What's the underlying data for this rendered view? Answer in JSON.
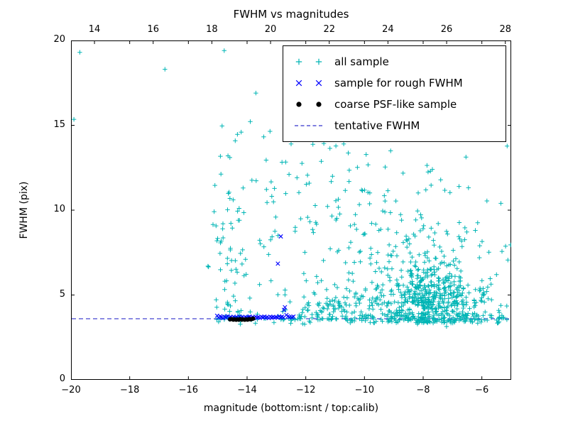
{
  "chart_data": {
    "type": "scatter",
    "title": "FWHM vs magnitudes",
    "xlabel": "magnitude (bottom:isnt / top:calib)",
    "ylabel": "FWHM (pix)",
    "xlim": [
      -20,
      -5
    ],
    "ylim": [
      0,
      20
    ],
    "grid": false,
    "legend_position": "upper right",
    "x_ticks": {
      "values": [
        -20,
        -18,
        -16,
        -14,
        -12,
        -10,
        -8,
        -6
      ],
      "labels": [
        "−20",
        "−18",
        "−16",
        "−14",
        "−12",
        "−10",
        "−8",
        "−6"
      ]
    },
    "top_ticks": {
      "values": [
        14,
        16,
        18,
        20,
        22,
        24,
        26,
        28
      ],
      "labels": [
        "14",
        "16",
        "18",
        "20",
        "22",
        "24",
        "26",
        "28"
      ],
      "offset": 33.2
    },
    "y_ticks": {
      "values": [
        0,
        5,
        10,
        15,
        20
      ],
      "labels": [
        "0",
        "5",
        "10",
        "15",
        "20"
      ]
    },
    "seed": 12345,
    "series": [
      {
        "name": "all sample",
        "marker": "plus",
        "color": "#00b5b5",
        "clusters": [
          {
            "kind": "gauss",
            "cx": -7.75,
            "cy": 4.6,
            "sx": 0.9,
            "sy": 1.0,
            "count": 500,
            "ymin": 3.35,
            "ymax": 8.5
          },
          {
            "kind": "gauss",
            "cx": -8.3,
            "cy": 7.3,
            "sx": 1.25,
            "sy": 2.3,
            "count": 150,
            "ymin": 3.4,
            "ymax": 15.3
          },
          {
            "kind": "band",
            "x0": -15.05,
            "x1": -5.02,
            "y": 3.62,
            "spread": 0.15,
            "count": 175
          },
          {
            "kind": "gauss",
            "cx": -14.55,
            "cy": 7.0,
            "sx": 0.38,
            "sy": 3.0,
            "count": 60,
            "ymin": 3.85,
            "ymax": 14.8
          },
          {
            "kind": "uniform",
            "x0": -13.7,
            "x1": -9.4,
            "y0": 3.9,
            "y1": 14.8,
            "count": 85
          },
          {
            "kind": "uniform",
            "x0": -15.0,
            "x1": -5.1,
            "y0": 4.0,
            "y1": 15.5,
            "count": 50
          },
          {
            "kind": "gauss",
            "cx": -9.9,
            "cy": 5.1,
            "sx": 0.75,
            "sy": 0.9,
            "count": 55,
            "ymin": 3.5,
            "ymax": 7.5
          },
          {
            "kind": "gauss",
            "cx": -11.3,
            "cy": 4.3,
            "sx": 0.7,
            "sy": 0.5,
            "count": 45,
            "ymin": 3.45,
            "ymax": 6.0
          }
        ],
        "points": [
          [
            -19.7,
            19.3
          ],
          [
            -19.9,
            15.35
          ],
          [
            -16.8,
            18.3
          ],
          [
            -14.78,
            19.4
          ],
          [
            -13.7,
            16.9
          ],
          [
            -12.0,
            15.7
          ],
          [
            -11.05,
            16.0
          ],
          [
            -8.2,
            16.1
          ],
          [
            -9.0,
            15.2
          ],
          [
            -7.0,
            15.3
          ],
          [
            -6.1,
            14.2
          ],
          [
            -5.35,
            10.4
          ],
          [
            -5.5,
            6.2
          ],
          [
            -5.15,
            4.35
          ],
          [
            -10.45,
            14.4
          ],
          [
            -12.5,
            13.9
          ],
          [
            -14.2,
            14.6
          ],
          [
            -14.65,
            13.2
          ]
        ]
      },
      {
        "name": "sample for rough FWHM",
        "marker": "x",
        "color": "#0000ff",
        "points": [
          [
            -15.02,
            3.78
          ],
          [
            -14.97,
            3.66
          ],
          [
            -14.92,
            3.74
          ],
          [
            -14.87,
            3.7
          ],
          [
            -14.82,
            3.64
          ],
          [
            -14.77,
            3.72
          ],
          [
            -14.72,
            3.68
          ],
          [
            -14.66,
            3.75
          ],
          [
            -14.61,
            3.67
          ],
          [
            -14.56,
            3.7
          ],
          [
            -14.51,
            3.64
          ],
          [
            -14.46,
            3.72
          ],
          [
            -14.41,
            3.66
          ],
          [
            -14.36,
            3.7
          ],
          [
            -14.31,
            3.65
          ],
          [
            -14.26,
            3.73
          ],
          [
            -14.21,
            3.67
          ],
          [
            -14.16,
            3.7
          ],
          [
            -14.11,
            3.64
          ],
          [
            -14.06,
            3.71
          ],
          [
            -14.01,
            3.66
          ],
          [
            -13.96,
            3.69
          ],
          [
            -13.91,
            3.73
          ],
          [
            -13.86,
            3.66
          ],
          [
            -13.81,
            3.7
          ],
          [
            -13.76,
            3.64
          ],
          [
            -13.71,
            3.72
          ],
          [
            -13.66,
            3.67
          ],
          [
            -13.61,
            3.7
          ],
          [
            -13.56,
            3.65
          ],
          [
            -13.51,
            3.71
          ],
          [
            -13.46,
            3.68
          ],
          [
            -13.41,
            3.73
          ],
          [
            -13.36,
            3.66
          ],
          [
            -13.31,
            3.7
          ],
          [
            -13.26,
            3.64
          ],
          [
            -13.21,
            3.72
          ],
          [
            -13.16,
            3.68
          ],
          [
            -13.11,
            3.71
          ],
          [
            -13.06,
            3.66
          ],
          [
            -13.01,
            3.7
          ],
          [
            -12.96,
            3.67
          ],
          [
            -12.91,
            3.74
          ],
          [
            -12.86,
            3.69
          ],
          [
            -12.81,
            3.72
          ],
          [
            -12.76,
            3.67
          ],
          [
            -12.71,
            4.28
          ],
          [
            -12.74,
            4.12
          ],
          [
            -12.66,
            3.82
          ],
          [
            -12.61,
            3.74
          ],
          [
            -12.56,
            3.7
          ],
          [
            -12.47,
            3.68
          ],
          [
            -12.42,
            3.73
          ],
          [
            -12.85,
            8.45
          ],
          [
            -12.95,
            6.85
          ]
        ]
      },
      {
        "name": "coarse PSF-like sample",
        "marker": "dot",
        "color": "#000000",
        "points": [
          [
            -14.58,
            3.56
          ],
          [
            -14.52,
            3.58
          ],
          [
            -14.47,
            3.55
          ],
          [
            -14.42,
            3.57
          ],
          [
            -14.37,
            3.54
          ],
          [
            -14.33,
            3.57
          ],
          [
            -14.28,
            3.55
          ],
          [
            -14.23,
            3.58
          ],
          [
            -14.18,
            3.55
          ],
          [
            -14.13,
            3.57
          ],
          [
            -14.08,
            3.54
          ],
          [
            -14.03,
            3.57
          ],
          [
            -13.98,
            3.55
          ],
          [
            -13.93,
            3.58
          ],
          [
            -13.88,
            3.56
          ],
          [
            -13.83,
            3.59
          ],
          [
            -13.79,
            3.61
          ]
        ]
      },
      {
        "name": "tentative FWHM",
        "marker": "dashed-line",
        "color": "#3333cc",
        "y": 3.6
      }
    ]
  }
}
